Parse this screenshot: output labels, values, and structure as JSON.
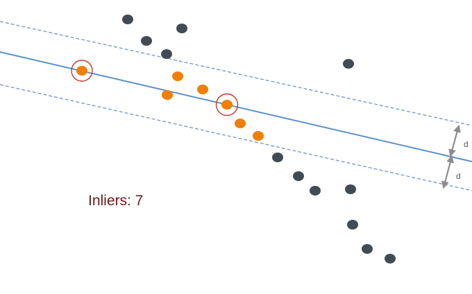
{
  "diagram": {
    "inliers_label": "Inliers: 7",
    "distance_label": "d",
    "colors": {
      "inlier": "#f07f09",
      "outlier": "#404b55",
      "line": "#5b8fc8",
      "band": "#6d95cf",
      "sample_ring": "#c0392b",
      "arrow": "#8c8c8c",
      "text": "#6b1a1a"
    }
  }
}
